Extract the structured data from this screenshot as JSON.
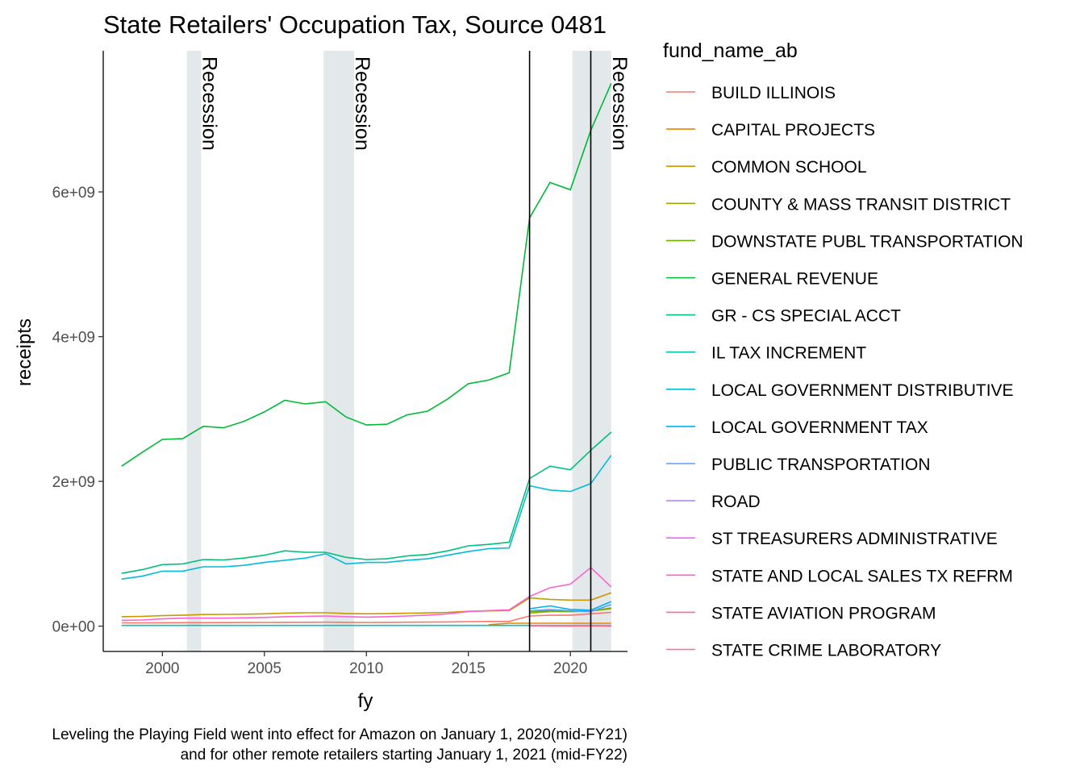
{
  "chart_data": {
    "type": "line",
    "title": "State Retailers' Occupation Tax, Source 0481",
    "xlabel": "fy",
    "ylabel": "receipts",
    "xlim": [
      1997.1,
      2022.8
    ],
    "ylim": [
      -350000000,
      7950000000
    ],
    "x_ticks": [
      2000,
      2005,
      2010,
      2015,
      2020
    ],
    "y_ticks": [
      0,
      2000000000,
      4000000000,
      6000000000
    ],
    "y_tick_labels": [
      "0e+00",
      "2e+09",
      "4e+09",
      "6e+09"
    ],
    "legend_title": "fund_name_ab",
    "legend_position": "right",
    "grid": false,
    "recessions": [
      {
        "start": 2001.2,
        "end": 2001.9,
        "label": "Recession"
      },
      {
        "start": 2007.9,
        "end": 2009.4,
        "label": "Recession"
      },
      {
        "start": 2020.1,
        "end": 2022.0,
        "label": "Recession"
      }
    ],
    "vlines": [
      2018,
      2021
    ],
    "caption_lines": [
      "Leveling the Playing Field went into effect for Amazon on January 1, 2020(mid-FY21)",
      "and for other remote retailers starting January 1, 2021 (mid-FY22)"
    ],
    "x": [
      1998,
      1999,
      2000,
      2001,
      2002,
      2003,
      2004,
      2005,
      2006,
      2007,
      2008,
      2009,
      2010,
      2011,
      2012,
      2013,
      2014,
      2015,
      2016,
      2017,
      2018,
      2019,
      2020,
      2021,
      2022
    ],
    "series": [
      {
        "name": "BUILD ILLINOIS",
        "color": "#F8766D",
        "values": [
          45000000,
          46000000,
          47000000,
          48000000,
          48000000,
          49000000,
          50000000,
          51000000,
          52000000,
          53000000,
          54000000,
          52000000,
          51000000,
          52000000,
          54000000,
          56000000,
          58000000,
          62000000,
          64000000,
          66000000,
          140000000,
          150000000,
          150000000,
          170000000,
          190000000
        ]
      },
      {
        "name": "CAPITAL PROJECTS",
        "color": "#E58700",
        "values": [
          null,
          null,
          null,
          null,
          null,
          null,
          null,
          null,
          null,
          null,
          null,
          null,
          null,
          null,
          null,
          null,
          null,
          null,
          20000000,
          40000000,
          40000000,
          40000000,
          40000000,
          40000000,
          40000000
        ]
      },
      {
        "name": "COMMON SCHOOL",
        "color": "#C99800",
        "values": [
          130000000,
          135000000,
          145000000,
          150000000,
          160000000,
          162000000,
          165000000,
          170000000,
          180000000,
          185000000,
          185000000,
          175000000,
          170000000,
          172000000,
          178000000,
          182000000,
          190000000,
          205000000,
          210000000,
          215000000,
          390000000,
          370000000,
          360000000,
          360000000,
          460000000
        ]
      },
      {
        "name": "COUNTY & MASS TRANSIT DISTRICT",
        "color": "#A3A500",
        "values": [
          null,
          null,
          null,
          null,
          null,
          null,
          null,
          null,
          null,
          null,
          null,
          null,
          null,
          null,
          null,
          null,
          null,
          null,
          null,
          null,
          180000000,
          200000000,
          200000000,
          210000000,
          250000000
        ]
      },
      {
        "name": "DOWNSTATE PUBL TRANSPORTATION",
        "color": "#6BB100",
        "values": [
          null,
          null,
          null,
          null,
          null,
          null,
          null,
          null,
          null,
          null,
          null,
          null,
          null,
          null,
          null,
          null,
          null,
          null,
          null,
          null,
          200000000,
          210000000,
          200000000,
          210000000,
          240000000
        ]
      },
      {
        "name": "GENERAL REVENUE",
        "color": "#00BA38",
        "values": [
          2210000000,
          2400000000,
          2580000000,
          2590000000,
          2760000000,
          2740000000,
          2830000000,
          2960000000,
          3120000000,
          3070000000,
          3100000000,
          2890000000,
          2780000000,
          2790000000,
          2920000000,
          2970000000,
          3140000000,
          3350000000,
          3400000000,
          3500000000,
          5640000000,
          6130000000,
          6030000000,
          6850000000,
          7500000000
        ]
      },
      {
        "name": "GR - CS SPECIAL ACCT",
        "color": "#00BF7D",
        "values": [
          730000000,
          780000000,
          850000000,
          860000000,
          920000000,
          915000000,
          940000000,
          980000000,
          1040000000,
          1020000000,
          1020000000,
          950000000,
          920000000,
          930000000,
          970000000,
          990000000,
          1040000000,
          1110000000,
          1130000000,
          1160000000,
          2040000000,
          2210000000,
          2160000000,
          2430000000,
          2680000000
        ]
      },
      {
        "name": "IL TAX INCREMENT",
        "color": "#00C0AF",
        "values": [
          10000000,
          10000000,
          10000000,
          10000000,
          10000000,
          10000000,
          10000000,
          10000000,
          10000000,
          10000000,
          10000000,
          10000000,
          10000000,
          10000000,
          10000000,
          10000000,
          10000000,
          10000000,
          10000000,
          10000000,
          10000000,
          10000000,
          10000000,
          10000000,
          10000000
        ]
      },
      {
        "name": "LOCAL GOVERNMENT DISTRIBUTIVE",
        "color": "#00BCD8",
        "values": [
          650000000,
          690000000,
          760000000,
          760000000,
          820000000,
          820000000,
          840000000,
          880000000,
          910000000,
          940000000,
          1000000000,
          860000000,
          880000000,
          880000000,
          910000000,
          930000000,
          980000000,
          1030000000,
          1070000000,
          1080000000,
          1940000000,
          1880000000,
          1860000000,
          1970000000,
          2360000000
        ]
      },
      {
        "name": "LOCAL GOVERNMENT TAX",
        "color": "#00B0F6",
        "values": [
          null,
          null,
          null,
          null,
          null,
          null,
          null,
          null,
          null,
          null,
          null,
          null,
          null,
          null,
          null,
          null,
          null,
          null,
          null,
          null,
          240000000,
          280000000,
          230000000,
          220000000,
          340000000
        ]
      },
      {
        "name": "PUBLIC TRANSPORTATION",
        "color": "#619CFF",
        "values": [
          null,
          null,
          null,
          null,
          null,
          null,
          null,
          null,
          null,
          null,
          null,
          null,
          null,
          null,
          null,
          null,
          null,
          null,
          null,
          null,
          210000000,
          230000000,
          210000000,
          200000000,
          300000000
        ]
      },
      {
        "name": "ROAD",
        "color": "#B983FF",
        "values": [
          null,
          null,
          null,
          null,
          null,
          null,
          null,
          null,
          null,
          null,
          null,
          null,
          null,
          null,
          null,
          null,
          null,
          null,
          null,
          null,
          10000000,
          10000000,
          10000000,
          10000000,
          10000000
        ]
      },
      {
        "name": "ST TREASURERS ADMINISTRATIVE",
        "color": "#E76BF3",
        "values": [
          null,
          null,
          null,
          null,
          null,
          null,
          null,
          null,
          null,
          null,
          null,
          null,
          null,
          null,
          null,
          null,
          null,
          null,
          null,
          null,
          5000000,
          5000000,
          5000000,
          5000000,
          5000000
        ]
      },
      {
        "name": "STATE AND LOCAL SALES TX REFRM",
        "color": "#FD61D1",
        "values": [
          80000000,
          85000000,
          100000000,
          110000000,
          110000000,
          110000000,
          115000000,
          120000000,
          130000000,
          135000000,
          140000000,
          130000000,
          125000000,
          130000000,
          140000000,
          150000000,
          170000000,
          200000000,
          215000000,
          225000000,
          410000000,
          530000000,
          580000000,
          810000000,
          540000000
        ]
      },
      {
        "name": "STATE AVIATION PROGRAM",
        "color": "#FF67A4",
        "values": [
          null,
          null,
          null,
          null,
          null,
          null,
          null,
          null,
          null,
          null,
          null,
          null,
          null,
          null,
          null,
          null,
          null,
          null,
          null,
          null,
          null,
          2000000,
          2000000,
          2000000,
          2000000
        ]
      },
      {
        "name": "STATE CRIME LABORATORY",
        "color": "#FF6C91",
        "values": [
          null,
          null,
          null,
          null,
          null,
          null,
          null,
          null,
          null,
          null,
          null,
          null,
          null,
          null,
          null,
          null,
          null,
          null,
          null,
          null,
          3000000,
          3000000,
          3000000,
          3000000,
          3000000
        ]
      }
    ]
  }
}
